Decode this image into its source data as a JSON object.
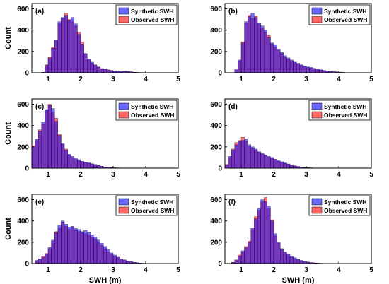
{
  "chart_data": [
    {
      "id": "a",
      "type": "bar",
      "panel_label": "(a)",
      "ylabel": "Count",
      "xlabel": "",
      "xlim": [
        0.5,
        5
      ],
      "ylim": [
        0,
        650
      ],
      "xticks": [
        1,
        2,
        3,
        4,
        5
      ],
      "yticks": [
        0,
        200,
        400,
        600
      ],
      "bin_start": 0.8,
      "bin_width": 0.1,
      "legend_position": "top-right",
      "series": [
        {
          "name": "Synthetic SWH",
          "color": "#0000ff",
          "values": [
            4,
            70,
            140,
            230,
            310,
            480,
            520,
            540,
            490,
            520,
            460,
            360,
            270,
            180,
            130,
            100,
            75,
            55,
            40,
            35,
            28,
            22,
            18,
            14,
            11,
            16,
            14,
            9,
            6,
            4,
            3,
            2,
            1,
            1,
            0,
            0,
            0,
            0,
            0,
            0,
            0,
            0
          ]
        },
        {
          "name": "Observed SWH",
          "color": "#ff0000",
          "values": [
            5,
            75,
            150,
            240,
            300,
            460,
            510,
            560,
            500,
            480,
            440,
            380,
            290,
            180,
            120,
            90,
            70,
            50,
            38,
            32,
            25,
            20,
            15,
            12,
            10,
            14,
            12,
            8,
            5,
            3,
            2,
            2,
            1,
            1,
            0,
            0,
            0,
            0,
            0,
            0,
            0,
            0
          ]
        }
      ]
    },
    {
      "id": "b",
      "type": "bar",
      "panel_label": "(b)",
      "ylabel": "",
      "xlabel": "",
      "xlim": [
        0.5,
        5
      ],
      "ylim": [
        0,
        650
      ],
      "xticks": [
        1,
        2,
        3,
        4,
        5
      ],
      "yticks": [
        0,
        200,
        400,
        600
      ],
      "bin_start": 0.8,
      "bin_width": 0.1,
      "legend_position": "top-right",
      "series": [
        {
          "name": "Synthetic SWH",
          "color": "#0000ff",
          "values": [
            30,
            120,
            280,
            480,
            530,
            560,
            520,
            470,
            440,
            400,
            330,
            280,
            260,
            220,
            190,
            160,
            140,
            120,
            100,
            90,
            75,
            65,
            55,
            50,
            42,
            35,
            28,
            22,
            18,
            14,
            10,
            8,
            6,
            4,
            2,
            1,
            0,
            0,
            0,
            0,
            0,
            0
          ]
        },
        {
          "name": "Observed SWH",
          "color": "#ff0000",
          "values": [
            25,
            110,
            290,
            470,
            540,
            510,
            530,
            460,
            420,
            380,
            350,
            270,
            240,
            210,
            180,
            150,
            130,
            110,
            95,
            85,
            70,
            60,
            50,
            45,
            38,
            30,
            25,
            20,
            15,
            12,
            9,
            7,
            5,
            3,
            2,
            1,
            0,
            0,
            0,
            0,
            0,
            0
          ]
        }
      ]
    },
    {
      "id": "c",
      "type": "bar",
      "panel_label": "(c)",
      "ylabel": "Count",
      "xlabel": "",
      "xlim": [
        0.5,
        5
      ],
      "ylim": [
        0,
        650
      ],
      "xticks": [
        1,
        2,
        3,
        4,
        5
      ],
      "yticks": [
        0,
        200,
        400,
        600
      ],
      "bin_start": 0.5,
      "bin_width": 0.1,
      "legend_position": "top-right",
      "series": [
        {
          "name": "Synthetic SWH",
          "color": "#0000ff",
          "values": [
            200,
            270,
            350,
            430,
            550,
            590,
            560,
            440,
            310,
            230,
            170,
            130,
            110,
            95,
            80,
            65,
            55,
            50,
            42,
            35,
            25,
            18,
            12,
            8,
            6,
            4,
            3,
            2,
            1,
            1,
            0,
            0,
            0,
            0,
            0,
            0,
            0,
            0,
            0,
            0,
            0,
            0,
            0,
            0,
            0
          ]
        },
        {
          "name": "Observed SWH",
          "color": "#ff0000",
          "values": [
            210,
            260,
            360,
            410,
            540,
            600,
            530,
            470,
            320,
            220,
            180,
            120,
            100,
            85,
            70,
            60,
            50,
            45,
            38,
            30,
            22,
            16,
            10,
            7,
            5,
            3,
            2,
            2,
            1,
            1,
            0,
            0,
            0,
            0,
            0,
            0,
            0,
            0,
            0,
            0,
            0,
            0,
            0,
            0,
            0
          ]
        }
      ]
    },
    {
      "id": "d",
      "type": "bar",
      "panel_label": "(d)",
      "ylabel": "",
      "xlabel": "",
      "xlim": [
        0.5,
        5
      ],
      "ylim": [
        0,
        650
      ],
      "xticks": [
        1,
        2,
        3,
        4,
        5
      ],
      "yticks": [
        0,
        200,
        400,
        600
      ],
      "bin_start": 0.5,
      "bin_width": 0.1,
      "legend_position": "top-right",
      "series": [
        {
          "name": "Synthetic SWH",
          "color": "#0000ff",
          "values": [
            30,
            110,
            170,
            220,
            250,
            260,
            270,
            220,
            200,
            180,
            155,
            140,
            125,
            110,
            100,
            85,
            70,
            60,
            50,
            40,
            30,
            22,
            15,
            10,
            7,
            5,
            3,
            2,
            1,
            0,
            0,
            0,
            0,
            0,
            0,
            0,
            0,
            0,
            0,
            0,
            0,
            0,
            0,
            0,
            0
          ]
        },
        {
          "name": "Observed SWH",
          "color": "#ff0000",
          "values": [
            35,
            100,
            180,
            240,
            260,
            290,
            250,
            200,
            190,
            170,
            150,
            130,
            120,
            105,
            90,
            80,
            65,
            55,
            45,
            38,
            28,
            20,
            14,
            9,
            6,
            4,
            3,
            2,
            1,
            0,
            0,
            0,
            0,
            0,
            0,
            0,
            0,
            0,
            0,
            0,
            0,
            0,
            0,
            0,
            0
          ]
        }
      ]
    },
    {
      "id": "e",
      "type": "bar",
      "panel_label": "(e)",
      "ylabel": "Count",
      "xlabel": "SWH (m)",
      "xlim": [
        0.5,
        5
      ],
      "ylim": [
        0,
        650
      ],
      "xticks": [
        1,
        2,
        3,
        4,
        5
      ],
      "yticks": [
        0,
        200,
        400,
        600
      ],
      "bin_start": 0.6,
      "bin_width": 0.1,
      "legend_position": "top-right",
      "series": [
        {
          "name": "Synthetic SWH",
          "color": "#0000ff",
          "values": [
            30,
            45,
            60,
            90,
            150,
            220,
            290,
            360,
            400,
            370,
            340,
            350,
            330,
            320,
            300,
            310,
            290,
            270,
            250,
            220,
            190,
            160,
            130,
            100,
            80,
            60,
            45,
            35,
            25,
            18,
            12,
            8,
            5,
            3,
            0,
            0,
            0,
            0,
            0,
            0,
            0,
            0,
            0,
            0
          ]
        },
        {
          "name": "Observed SWH",
          "color": "#ff0000",
          "values": [
            25,
            40,
            70,
            95,
            140,
            210,
            300,
            330,
            390,
            350,
            320,
            340,
            310,
            300,
            290,
            280,
            270,
            250,
            230,
            200,
            170,
            140,
            110,
            90,
            70,
            55,
            40,
            30,
            20,
            14,
            10,
            6,
            4,
            2,
            0,
            0,
            0,
            0,
            0,
            0,
            0,
            0,
            0,
            0
          ]
        }
      ]
    },
    {
      "id": "f",
      "type": "bar",
      "panel_label": "(f)",
      "ylabel": "",
      "xlabel": "SWH (m)",
      "xlim": [
        0.5,
        5
      ],
      "ylim": [
        0,
        650
      ],
      "xticks": [
        1,
        2,
        3,
        4,
        5
      ],
      "yticks": [
        0,
        200,
        400,
        600
      ],
      "bin_start": 0.7,
      "bin_width": 0.1,
      "legend_position": "top-right",
      "series": [
        {
          "name": "Synthetic SWH",
          "color": "#0000ff",
          "values": [
            10,
            30,
            70,
            120,
            150,
            200,
            330,
            420,
            520,
            600,
            580,
            540,
            400,
            280,
            200,
            140,
            110,
            90,
            70,
            55,
            40,
            30,
            22,
            15,
            10,
            7,
            5,
            3,
            2,
            1,
            0,
            0,
            0,
            0,
            0,
            0,
            0,
            0,
            0,
            0,
            0,
            0,
            0
          ]
        },
        {
          "name": "Observed SWH",
          "color": "#ff0000",
          "values": [
            12,
            35,
            80,
            110,
            160,
            210,
            320,
            440,
            500,
            580,
            620,
            520,
            410,
            260,
            190,
            130,
            100,
            80,
            60,
            45,
            35,
            25,
            18,
            12,
            8,
            6,
            4,
            2,
            1,
            1,
            0,
            0,
            0,
            0,
            0,
            0,
            0,
            0,
            0,
            0,
            0,
            0,
            0
          ]
        }
      ]
    }
  ]
}
